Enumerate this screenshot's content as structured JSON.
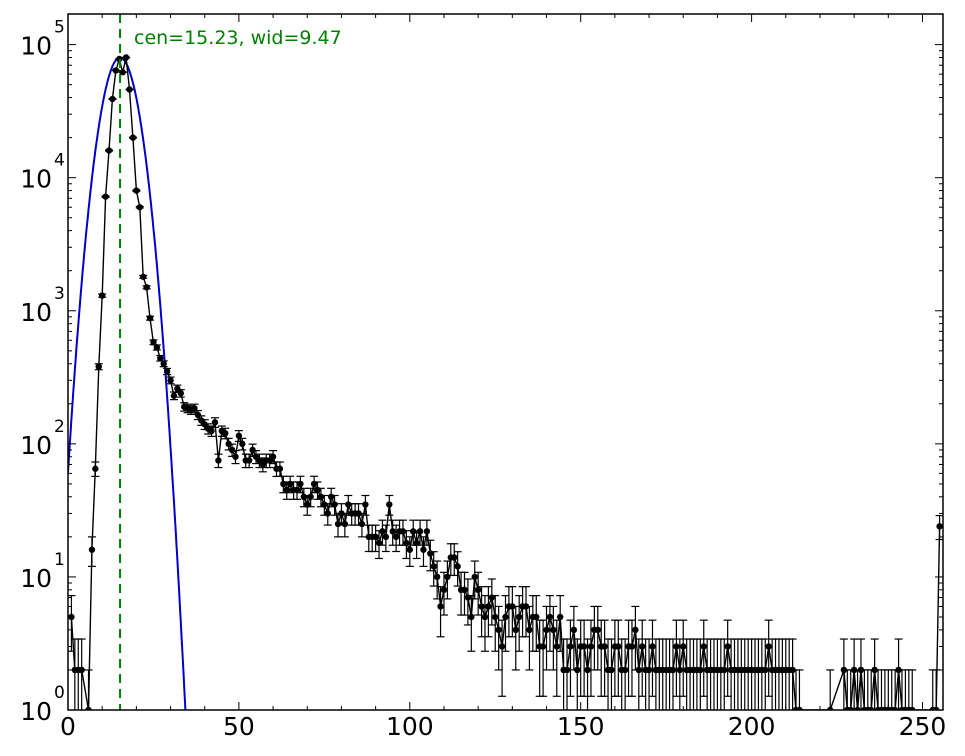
{
  "chart_data": {
    "type": "scatter",
    "title": "",
    "xlabel": "",
    "ylabel": "",
    "xlim": [
      0,
      256
    ],
    "ylim_log10": [
      0,
      5.23
    ],
    "yscale": "log",
    "grid": false,
    "x_ticks": [
      {
        "value": 0,
        "label": "0"
      },
      {
        "value": 50,
        "label": "50"
      },
      {
        "value": 100,
        "label": "100"
      },
      {
        "value": 150,
        "label": "150"
      },
      {
        "value": 200,
        "label": "200"
      },
      {
        "value": 250,
        "label": "250"
      }
    ],
    "y_ticks": [
      {
        "exp": 0,
        "base": "10",
        "power": "0"
      },
      {
        "exp": 1,
        "base": "10",
        "power": "1"
      },
      {
        "exp": 2,
        "base": "10",
        "power": "2"
      },
      {
        "exp": 3,
        "base": "10",
        "power": "3"
      },
      {
        "exp": 4,
        "base": "10",
        "power": "4"
      },
      {
        "exp": 5,
        "base": "10",
        "power": "5"
      }
    ],
    "annotation": {
      "text": "cen=15.23, wid=9.47",
      "color": "#008000"
    },
    "marker_line": {
      "x": 15.23,
      "color": "#008000",
      "style": "dashed"
    },
    "series": [
      {
        "kind": "data-with-errorbars",
        "color": "#000000",
        "points": [
          [
            1,
            5
          ],
          [
            2,
            2
          ],
          [
            3,
            2
          ],
          [
            4,
            2
          ],
          [
            6,
            1
          ],
          [
            7,
            16
          ],
          [
            8,
            65
          ],
          [
            9,
            380
          ],
          [
            10,
            1300
          ],
          [
            11,
            7200
          ],
          [
            12,
            16000
          ],
          [
            13,
            39000
          ],
          [
            14,
            64000
          ],
          [
            15,
            78000
          ],
          [
            16,
            62000
          ],
          [
            17,
            80000
          ],
          [
            18,
            46000
          ],
          [
            19,
            20000
          ],
          [
            20,
            8000
          ],
          [
            21,
            6000
          ],
          [
            22,
            1800
          ],
          [
            23,
            1500
          ],
          [
            24,
            880
          ],
          [
            25,
            580
          ],
          [
            26,
            530
          ],
          [
            27,
            440
          ],
          [
            28,
            400
          ],
          [
            29,
            350
          ],
          [
            30,
            300
          ],
          [
            31,
            230
          ],
          [
            32,
            260
          ],
          [
            33,
            240
          ],
          [
            34,
            190
          ],
          [
            35,
            185
          ],
          [
            36,
            180
          ],
          [
            37,
            185
          ],
          [
            38,
            165
          ],
          [
            39,
            150
          ],
          [
            40,
            140
          ],
          [
            41,
            130
          ],
          [
            42,
            125
          ],
          [
            43,
            145
          ],
          [
            44,
            75
          ],
          [
            45,
            125
          ],
          [
            46,
            120
          ],
          [
            47,
            100
          ],
          [
            48,
            90
          ],
          [
            49,
            80
          ],
          [
            50,
            115
          ],
          [
            51,
            100
          ],
          [
            52,
            75
          ],
          [
            53,
            75
          ],
          [
            54,
            90
          ],
          [
            55,
            80
          ],
          [
            56,
            75
          ],
          [
            57,
            70
          ],
          [
            58,
            75
          ],
          [
            59,
            75
          ],
          [
            60,
            80
          ],
          [
            61,
            65
          ],
          [
            62,
            65
          ],
          [
            63,
            50
          ],
          [
            64,
            45
          ],
          [
            65,
            50
          ],
          [
            66,
            45
          ],
          [
            67,
            45
          ],
          [
            68,
            50
          ],
          [
            69,
            40
          ],
          [
            70,
            35
          ],
          [
            71,
            40
          ],
          [
            72,
            50
          ],
          [
            73,
            45
          ],
          [
            74,
            40
          ],
          [
            75,
            35
          ],
          [
            76,
            30
          ],
          [
            77,
            40
          ],
          [
            78,
            35
          ],
          [
            79,
            25
          ],
          [
            80,
            30
          ],
          [
            81,
            25
          ],
          [
            82,
            35
          ],
          [
            83,
            30
          ],
          [
            84,
            30
          ],
          [
            85,
            30
          ],
          [
            86,
            25
          ],
          [
            87,
            35
          ],
          [
            88,
            20
          ],
          [
            89,
            20
          ],
          [
            90,
            20
          ],
          [
            91,
            18
          ],
          [
            92,
            22
          ],
          [
            93,
            20
          ],
          [
            94,
            35
          ],
          [
            95,
            22
          ],
          [
            96,
            20
          ],
          [
            97,
            22
          ],
          [
            98,
            22
          ],
          [
            99,
            18
          ],
          [
            100,
            16
          ],
          [
            101,
            22
          ],
          [
            102,
            18
          ],
          [
            103,
            22
          ],
          [
            104,
            16
          ],
          [
            105,
            22
          ],
          [
            106,
            15
          ],
          [
            107,
            12
          ],
          [
            108,
            10
          ],
          [
            109,
            6
          ],
          [
            110,
            8
          ],
          [
            111,
            10
          ],
          [
            112,
            14
          ],
          [
            113,
            14
          ],
          [
            114,
            12
          ],
          [
            115,
            8
          ],
          [
            116,
            8
          ],
          [
            117,
            7
          ],
          [
            118,
            5
          ],
          [
            119,
            10
          ],
          [
            120,
            8
          ],
          [
            121,
            6
          ],
          [
            122,
            5
          ],
          [
            123,
            6
          ],
          [
            124,
            7
          ],
          [
            125,
            5
          ],
          [
            126,
            4
          ],
          [
            127,
            3
          ],
          [
            128,
            5
          ],
          [
            129,
            6
          ],
          [
            130,
            6
          ],
          [
            131,
            4
          ],
          [
            132,
            5
          ],
          [
            133,
            6
          ],
          [
            134,
            6
          ],
          [
            135,
            4
          ],
          [
            136,
            5
          ],
          [
            137,
            5
          ],
          [
            138,
            3
          ],
          [
            139,
            3
          ],
          [
            140,
            4
          ],
          [
            141,
            5
          ],
          [
            142,
            4
          ],
          [
            143,
            3
          ],
          [
            144,
            5
          ],
          [
            145,
            2
          ],
          [
            146,
            2
          ],
          [
            147,
            3
          ],
          [
            148,
            4
          ],
          [
            149,
            2
          ],
          [
            150,
            3
          ],
          [
            151,
            3
          ],
          [
            152,
            2
          ],
          [
            153,
            3
          ],
          [
            154,
            4
          ],
          [
            155,
            4
          ],
          [
            156,
            3
          ],
          [
            157,
            3
          ],
          [
            158,
            2
          ],
          [
            159,
            2
          ],
          [
            160,
            3
          ],
          [
            161,
            3
          ],
          [
            162,
            2
          ],
          [
            163,
            2
          ],
          [
            164,
            3
          ],
          [
            165,
            3
          ],
          [
            166,
            4
          ],
          [
            167,
            2
          ],
          [
            168,
            3
          ],
          [
            169,
            2
          ],
          [
            170,
            2
          ],
          [
            171,
            3
          ],
          [
            172,
            2
          ],
          [
            173,
            2
          ],
          [
            174,
            2
          ],
          [
            175,
            2
          ],
          [
            176,
            2
          ],
          [
            177,
            2
          ],
          [
            178,
            3
          ],
          [
            179,
            2
          ],
          [
            180,
            3
          ],
          [
            181,
            2
          ],
          [
            182,
            2
          ],
          [
            183,
            2
          ],
          [
            184,
            2
          ],
          [
            185,
            2
          ],
          [
            186,
            3
          ],
          [
            187,
            2
          ],
          [
            188,
            2
          ],
          [
            189,
            2
          ],
          [
            190,
            2
          ],
          [
            191,
            2
          ],
          [
            192,
            2
          ],
          [
            193,
            3
          ],
          [
            194,
            2
          ],
          [
            195,
            2
          ],
          [
            196,
            2
          ],
          [
            197,
            2
          ],
          [
            198,
            2
          ],
          [
            199,
            2
          ],
          [
            200,
            2
          ],
          [
            201,
            2
          ],
          [
            202,
            2
          ],
          [
            203,
            2
          ],
          [
            204,
            2
          ],
          [
            205,
            3
          ],
          [
            206,
            2
          ],
          [
            207,
            2
          ],
          [
            208,
            2
          ],
          [
            209,
            2
          ],
          [
            210,
            2
          ],
          [
            211,
            2
          ],
          [
            212,
            2
          ],
          [
            213,
            1
          ],
          [
            214,
            1
          ],
          [
            223,
            1
          ],
          [
            227,
            2
          ],
          [
            228,
            1
          ],
          [
            229,
            1
          ],
          [
            230,
            2
          ],
          [
            231,
            1
          ],
          [
            232,
            2
          ],
          [
            233,
            1
          ],
          [
            234,
            1
          ],
          [
            235,
            1
          ],
          [
            236,
            2
          ],
          [
            237,
            1
          ],
          [
            238,
            1
          ],
          [
            239,
            1
          ],
          [
            240,
            1
          ],
          [
            241,
            1
          ],
          [
            242,
            1
          ],
          [
            243,
            2
          ],
          [
            244,
            1
          ],
          [
            245,
            1
          ],
          [
            246,
            1
          ],
          [
            247,
            1
          ],
          [
            253,
            1
          ],
          [
            254,
            1
          ],
          [
            255,
            24
          ]
        ]
      },
      {
        "kind": "gaussian-fit",
        "color": "#0000cc",
        "center": 15.23,
        "width": 9.47,
        "peak": 80000
      }
    ]
  }
}
